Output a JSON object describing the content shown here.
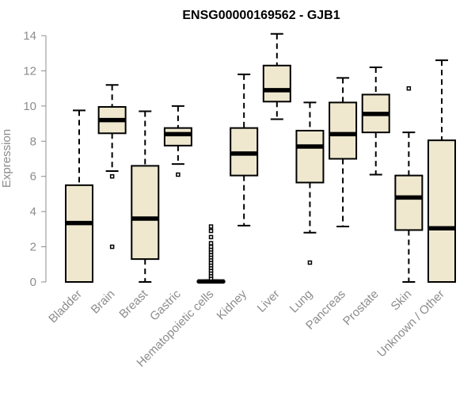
{
  "chart_data": {
    "type": "box",
    "title": "ENSG00000169562 - GJB1",
    "ylabel": "Expression",
    "xlabel": "",
    "ylim": [
      0,
      14.5
    ],
    "yticks": [
      0,
      2,
      4,
      6,
      8,
      10,
      12,
      14
    ],
    "colors": {
      "box_fill": "#efe8cf",
      "box_stroke": "#000000",
      "axis": "#8c8c8c"
    },
    "categories": [
      "Bladder",
      "Brain",
      "Breast",
      "Gastric",
      "Hematopoietic cells",
      "Kidney",
      "Liver",
      "Lung",
      "Pancreas",
      "Prostate",
      "Skin",
      "Unknown / Other"
    ],
    "boxes": [
      {
        "name": "Bladder",
        "min": 0.0,
        "q1": 0.0,
        "median": 3.35,
        "q3": 5.5,
        "max": 9.75,
        "outliers": []
      },
      {
        "name": "Brain",
        "min": 6.3,
        "q1": 8.45,
        "median": 9.2,
        "q3": 9.95,
        "max": 11.2,
        "outliers": [
          6.0,
          2.0
        ]
      },
      {
        "name": "Breast",
        "min": 0.0,
        "q1": 1.3,
        "median": 3.6,
        "q3": 6.6,
        "max": 9.7,
        "outliers": []
      },
      {
        "name": "Gastric",
        "min": 6.7,
        "q1": 7.75,
        "median": 8.4,
        "q3": 8.75,
        "max": 10.0,
        "outliers": [
          6.1
        ]
      },
      {
        "name": "Hematopoietic cells",
        "min": 0.0,
        "q1": 0.0,
        "median": 0.03,
        "q3": 0.05,
        "max": 0.1,
        "outliers": [
          0.2,
          0.35,
          0.5,
          0.65,
          0.8,
          0.95,
          1.1,
          1.25,
          1.4,
          1.55,
          1.7,
          1.85,
          2.0,
          2.2,
          2.55,
          2.9,
          3.15
        ]
      },
      {
        "name": "Kidney",
        "min": 3.2,
        "q1": 6.05,
        "median": 7.3,
        "q3": 8.75,
        "max": 11.8,
        "outliers": []
      },
      {
        "name": "Liver",
        "min": 9.25,
        "q1": 10.25,
        "median": 10.9,
        "q3": 12.3,
        "max": 14.1,
        "outliers": []
      },
      {
        "name": "Lung",
        "min": 2.8,
        "q1": 5.65,
        "median": 7.7,
        "q3": 8.6,
        "max": 10.2,
        "outliers": [
          1.1
        ]
      },
      {
        "name": "Pancreas",
        "min": 3.15,
        "q1": 7.0,
        "median": 8.4,
        "q3": 10.2,
        "max": 11.6,
        "outliers": []
      },
      {
        "name": "Prostate",
        "min": 6.1,
        "q1": 8.5,
        "median": 9.55,
        "q3": 10.65,
        "max": 12.2,
        "outliers": []
      },
      {
        "name": "Skin",
        "min": 0.0,
        "q1": 2.95,
        "median": 4.8,
        "q3": 6.05,
        "max": 8.5,
        "outliers": [
          11.0
        ]
      },
      {
        "name": "Unknown / Other",
        "min": 0.0,
        "q1": 0.0,
        "median": 3.05,
        "q3": 8.05,
        "max": 12.6,
        "outliers": []
      }
    ]
  }
}
